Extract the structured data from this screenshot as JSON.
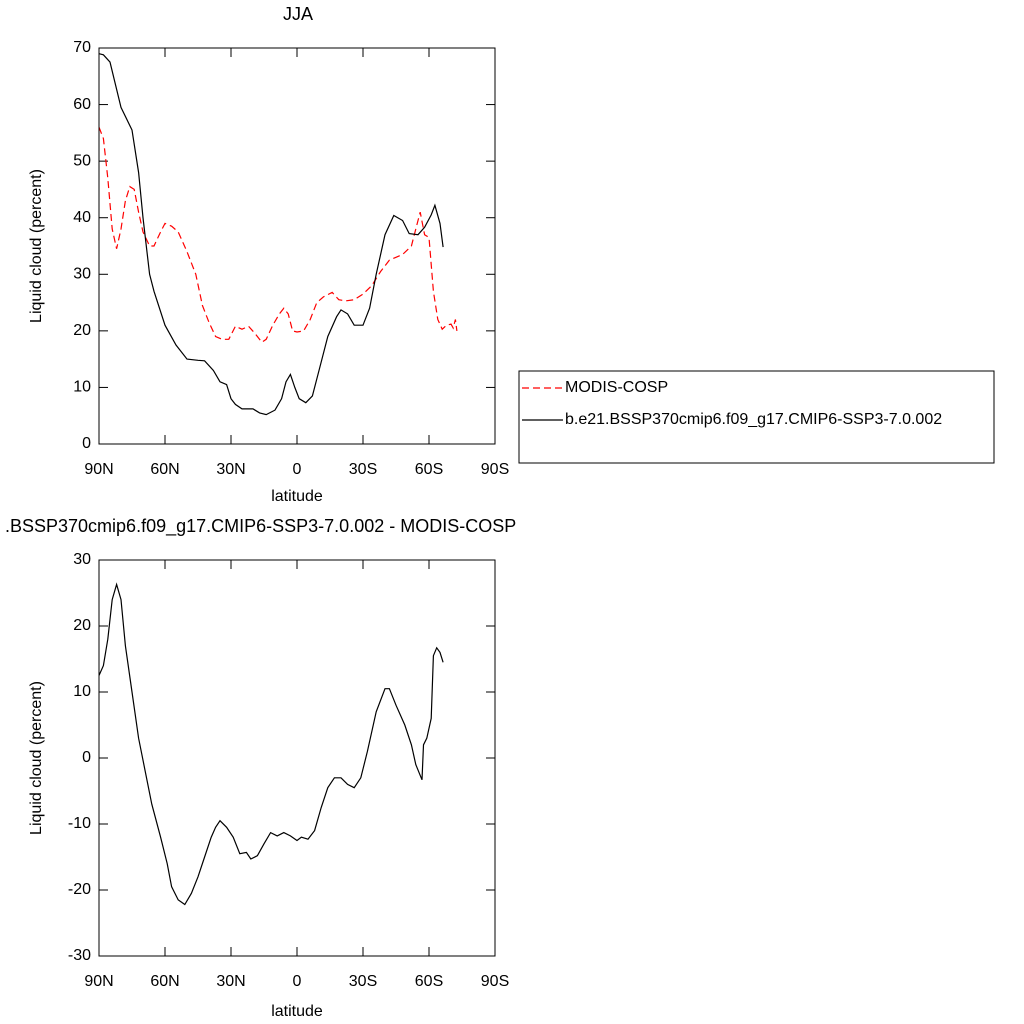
{
  "chart_data": [
    {
      "type": "line",
      "title": "JJA",
      "x_label": "latitude",
      "y_label": "Liquid cloud (percent)",
      "xlim": [
        90,
        -90
      ],
      "xticks": [
        {
          "value": 90,
          "label": "90N"
        },
        {
          "value": 60,
          "label": "60N"
        },
        {
          "value": 30,
          "label": "30N"
        },
        0,
        {
          "value": -30,
          "label": "30S"
        },
        {
          "value": -60,
          "label": "60S"
        },
        {
          "value": -90,
          "label": "90S"
        }
      ],
      "ylim": [
        0,
        70
      ],
      "yticks": [
        0,
        10,
        20,
        30,
        40,
        50,
        60,
        70
      ],
      "legend": "right",
      "series": [
        {
          "name": "MODIS-COSP",
          "color": "#ff0000",
          "style": "dashed",
          "x": [
            90,
            88,
            86,
            84,
            82,
            80,
            78,
            76,
            74,
            72,
            70,
            67,
            65,
            62,
            60,
            57,
            54,
            50,
            46,
            43,
            40,
            37,
            34,
            31,
            28,
            25,
            22,
            19,
            16,
            14,
            11,
            8,
            6,
            4,
            2,
            0,
            -3,
            -6,
            -9,
            -12,
            -16,
            -19,
            -22,
            -26,
            -30,
            -34,
            -38,
            -42,
            -45,
            -48,
            -52,
            -54,
            -56,
            -58,
            -60,
            -62,
            -64,
            -66,
            -68,
            -70,
            -71,
            -72,
            -72.7
          ],
          "values": [
            56,
            54,
            47,
            38,
            34.5,
            38,
            43,
            45.5,
            45,
            41,
            37.5,
            35,
            35,
            37.5,
            39,
            38.5,
            37.5,
            34,
            30,
            24.5,
            21.5,
            19,
            18.5,
            18.5,
            20.8,
            20.3,
            20.8,
            19.5,
            18,
            18.5,
            21,
            23,
            24,
            23,
            20,
            19.8,
            20,
            22,
            25,
            26,
            26.8,
            25.5,
            25.3,
            25.5,
            26.5,
            28,
            30.5,
            32.5,
            33,
            33.5,
            35,
            38,
            41,
            37,
            36.5,
            27,
            22,
            20.3,
            21,
            21.2,
            20.5,
            22,
            20
          ]
        },
        {
          "name": "b.e21.BSSP370cmip6.f09_g17.CMIP6-SSP3-7.0.002",
          "color": "#000000",
          "style": "solid",
          "x": [
            90,
            88,
            85,
            80,
            75,
            72,
            70,
            67,
            65,
            60,
            55,
            50,
            45,
            42,
            38,
            35,
            32,
            30,
            28,
            25,
            20,
            17,
            14,
            10,
            7,
            5,
            3,
            1,
            -1,
            -4,
            -7,
            -10,
            -14,
            -18,
            -20,
            -23,
            -26,
            -30,
            -33,
            -36,
            -40,
            -44,
            -48,
            -51,
            -55,
            -58,
            -61,
            -62.7,
            -65,
            -66.4
          ],
          "values": [
            69,
            68.8,
            67.5,
            59.5,
            55.5,
            48,
            40,
            30,
            27,
            21,
            17.5,
            15,
            14.8,
            14.7,
            13,
            11,
            10.5,
            8,
            7,
            6.2,
            6.2,
            5.5,
            5.2,
            6,
            8,
            11,
            12.3,
            10,
            8,
            7.3,
            8.5,
            13,
            19,
            22.5,
            23.7,
            23,
            21,
            21,
            24,
            30,
            37,
            40.4,
            39.5,
            37.2,
            37,
            38.3,
            40.5,
            42.2,
            39,
            34.8
          ]
        }
      ]
    },
    {
      "type": "line",
      "title": ".BSSP370cmip6.f09_g17.CMIP6-SSP3-7.0.002 - MODIS-COSP",
      "x_label": "latitude",
      "y_label": "Liquid cloud (percent)",
      "xlim": [
        90,
        -90
      ],
      "xticks": [
        {
          "value": 90,
          "label": "90N"
        },
        {
          "value": 60,
          "label": "60N"
        },
        {
          "value": 30,
          "label": "30N"
        },
        0,
        {
          "value": -30,
          "label": "30S"
        },
        {
          "value": -60,
          "label": "60S"
        },
        {
          "value": -90,
          "label": "90S"
        }
      ],
      "ylim": [
        -30,
        30
      ],
      "yticks": [
        -30,
        -20,
        -10,
        0,
        10,
        20,
        30
      ],
      "series": [
        {
          "color": "#000000",
          "style": "solid",
          "x": [
            90,
            88,
            86,
            84,
            82,
            80,
            78,
            75,
            72,
            69,
            66,
            62,
            59,
            57,
            54,
            51,
            48,
            45,
            42,
            39,
            37,
            35,
            32,
            29,
            26,
            23,
            21,
            18,
            15,
            12,
            9,
            6,
            3,
            0,
            -2,
            -5,
            -8,
            -11,
            -14,
            -17,
            -20,
            -23,
            -26,
            -29,
            -32,
            -36,
            -40,
            -42,
            -45,
            -49,
            -52,
            -54,
            -56.8,
            -57.5,
            -59,
            -61,
            -62,
            -63.5,
            -65,
            -66.4
          ],
          "values": [
            12.5,
            14,
            18,
            24,
            26.3,
            24,
            17,
            10,
            3,
            -2,
            -7,
            -12,
            -16,
            -19.5,
            -21.5,
            -22.2,
            -20.5,
            -18,
            -15,
            -12,
            -10.5,
            -9.5,
            -10.5,
            -12,
            -14.5,
            -14.3,
            -15.3,
            -14.8,
            -13,
            -11.3,
            -11.8,
            -11.3,
            -11.8,
            -12.5,
            -12,
            -12.3,
            -11,
            -7.5,
            -4.5,
            -3,
            -3,
            -4,
            -4.5,
            -3,
            1,
            7,
            10.5,
            10.5,
            8,
            5,
            2,
            -1,
            -3.3,
            2,
            3,
            6,
            15.5,
            16.7,
            16,
            14.5
          ]
        }
      ]
    }
  ]
}
